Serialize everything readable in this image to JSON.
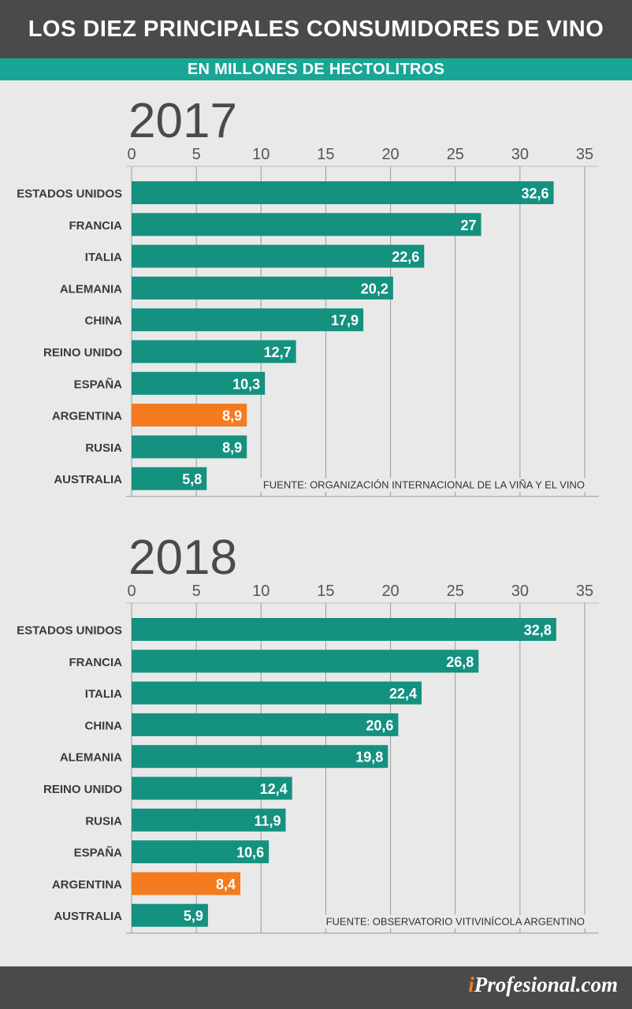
{
  "header": {
    "title": "LOS DIEZ PRINCIPALES CONSUMIDORES DE VINO",
    "subtitle": "EN MILLONES DE HECTOLITROS"
  },
  "colors": {
    "header_bg": "#4a4a4a",
    "accent_teal": "#1aa697",
    "bar_default": "#15917f",
    "bar_highlight": "#f47b20",
    "background": "#e9e9e9"
  },
  "chart_data": [
    {
      "type": "bar",
      "orientation": "horizontal",
      "title": "2017",
      "categories": [
        "ESTADOS UNIDOS",
        "FRANCIA",
        "ITALIA",
        "ALEMANIA",
        "CHINA",
        "REINO UNIDO",
        "ESPAÑA",
        "ARGENTINA",
        "RUSIA",
        "AUSTRALIA"
      ],
      "values": [
        32.6,
        27,
        22.6,
        20.2,
        17.9,
        12.7,
        10.3,
        8.9,
        8.9,
        5.8
      ],
      "labels": [
        "32,6",
        "27",
        "22,6",
        "20,2",
        "17,9",
        "12,7",
        "10,3",
        "8,9",
        "8,9",
        "5,8"
      ],
      "highlight": "ARGENTINA",
      "xticks": [
        0,
        5,
        10,
        15,
        20,
        25,
        30,
        35
      ],
      "xlim": [
        0,
        35
      ],
      "grid": true,
      "source": "FUENTE: ORGANIZACIÓN INTERNACIONAL DE LA VIÑA Y EL VINO"
    },
    {
      "type": "bar",
      "orientation": "horizontal",
      "title": "2018",
      "categories": [
        "ESTADOS UNIDOS",
        "FRANCIA",
        "ITALIA",
        "CHINA",
        "ALEMANIA",
        "REINO UNIDO",
        "RUSIA",
        "ESPAÑA",
        "ARGENTINA",
        "AUSTRALIA"
      ],
      "values": [
        32.8,
        26.8,
        22.4,
        20.6,
        19.8,
        12.4,
        11.9,
        10.6,
        8.4,
        5.9
      ],
      "labels": [
        "32,8",
        "26,8",
        "22,4",
        "20,6",
        "19,8",
        "12,4",
        "11,9",
        "10,6",
        "8,4",
        "5,9"
      ],
      "highlight": "ARGENTINA",
      "xticks": [
        0,
        5,
        10,
        15,
        20,
        25,
        30,
        35
      ],
      "xlim": [
        0,
        35
      ],
      "grid": true,
      "source": "FUENTE: OBSERVATORIO VITIVINÍCOLA ARGENTINO"
    }
  ],
  "footer": {
    "brand_i": "i",
    "brand_rest": "Profesional.com"
  }
}
